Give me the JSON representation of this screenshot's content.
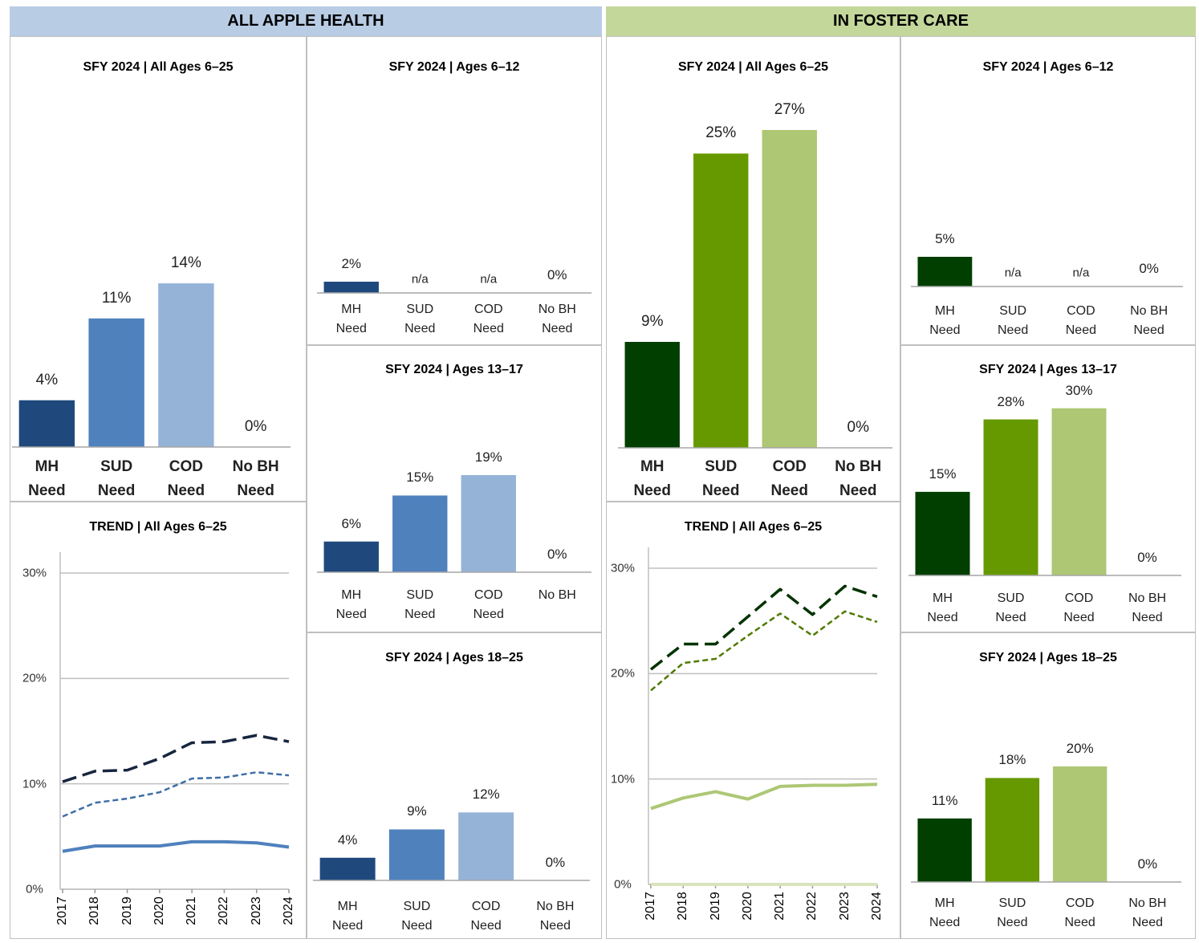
{
  "headers": [
    "ALL APPLE HEALTH",
    "IN FOSTER CARE"
  ],
  "header_colors": [
    "#b8cce4",
    "#c4d79b"
  ],
  "chart_data": [
    {
      "type": "bar",
      "title": "SFY 2024 | All Ages 6–25",
      "categories": [
        "MH Need",
        "SUD Need",
        "COD Need",
        "No BH Need"
      ],
      "values": [
        4,
        11,
        14,
        0
      ],
      "value_labels": [
        "4%",
        "11%",
        "14%",
        "0%"
      ],
      "colors": [
        "#1f497d",
        "#4f81bd",
        "#95b3d7",
        "#dce6f1"
      ],
      "ylim": [
        0,
        30
      ]
    },
    {
      "type": "line",
      "title": "TREND | All Ages 6–25",
      "x": [
        2017,
        2018,
        2019,
        2020,
        2021,
        2022,
        2023,
        2024
      ],
      "xlim": [
        2017,
        2024
      ],
      "xticks": [
        2017,
        2018,
        2019,
        2020,
        2021,
        2022,
        2023,
        2024
      ],
      "ylim": [
        0,
        30
      ],
      "yticks": [
        {
          "value": 0,
          "label": "0%"
        },
        {
          "value": 10,
          "label": "10%"
        },
        {
          "value": 20,
          "label": "20%"
        },
        {
          "value": 30,
          "label": "30%"
        }
      ],
      "grid": true,
      "series": [
        {
          "color": "#17263f",
          "style": "long-dash",
          "values": [
            10.2,
            11.2,
            11.3,
            12.4,
            13.9,
            14.0,
            14.6,
            14.0
          ]
        },
        {
          "color": "#3f6ea5",
          "style": "dash",
          "values": [
            6.9,
            8.2,
            8.6,
            9.2,
            10.5,
            10.6,
            11.1,
            10.8
          ]
        },
        {
          "color": "#4f81bd",
          "style": "solid",
          "values": [
            3.6,
            4.1,
            4.1,
            4.1,
            4.5,
            4.5,
            4.4,
            4.0
          ]
        }
      ]
    },
    {
      "type": "bar",
      "title": "SFY 2024 | Ages 6–12",
      "categories": [
        "MH Need",
        "SUD Need",
        "COD Need",
        "No BH Need"
      ],
      "values": [
        2,
        null,
        null,
        0
      ],
      "value_labels": [
        "2%",
        "n/a",
        "n/a",
        "0%"
      ],
      "colors": [
        "#1f497d",
        "#4f81bd",
        "#95b3d7",
        "#dce6f1"
      ],
      "ylim": [
        0,
        35
      ]
    },
    {
      "type": "bar",
      "title": "SFY 2024 | Ages 13–17",
      "categories": [
        "MH Need",
        "SUD Need",
        "COD Need",
        "No BH"
      ],
      "values": [
        6,
        15,
        19,
        0
      ],
      "value_labels": [
        "6%",
        "15%",
        "19%",
        "0%"
      ],
      "colors": [
        "#1f497d",
        "#4f81bd",
        "#95b3d7",
        "#dce6f1"
      ],
      "ylim": [
        0,
        35
      ]
    },
    {
      "type": "bar",
      "title": "SFY 2024 | Ages 18–25",
      "categories": [
        "MH Need",
        "SUD Need",
        "COD Need",
        "No BH Need"
      ],
      "values": [
        4,
        9,
        12,
        0
      ],
      "value_labels": [
        "4%",
        "9%",
        "12%",
        "0%"
      ],
      "colors": [
        "#1f497d",
        "#4f81bd",
        "#95b3d7",
        "#dce6f1"
      ],
      "ylim": [
        0,
        35
      ]
    },
    {
      "type": "bar",
      "title": "SFY 2024 | All Ages 6–25",
      "categories": [
        "MH Need",
        "SUD Need",
        "COD Need",
        "No BH Need"
      ],
      "values": [
        9,
        25,
        27,
        0
      ],
      "value_labels": [
        "9%",
        "25%",
        "27%",
        "0%"
      ],
      "colors": [
        "#003f00",
        "#669900",
        "#adc774",
        "#ebf1de"
      ],
      "ylim": [
        0,
        30
      ]
    },
    {
      "type": "line",
      "title": "TREND | All Ages 6–25",
      "x": [
        2017,
        2018,
        2019,
        2020,
        2021,
        2022,
        2023,
        2024
      ],
      "xlim": [
        2017,
        2024
      ],
      "xticks": [
        2017,
        2018,
        2019,
        2020,
        2021,
        2022,
        2023,
        2024
      ],
      "ylim": [
        0,
        30
      ],
      "yticks": [
        {
          "value": 0,
          "label": "0%"
        },
        {
          "value": 10,
          "label": "10%"
        },
        {
          "value": 20,
          "label": "20%"
        },
        {
          "value": 30,
          "label": "30%"
        }
      ],
      "grid": true,
      "series": [
        {
          "color": "#003300",
          "style": "long-dash",
          "values": [
            20.4,
            22.8,
            22.8,
            25.4,
            28.0,
            25.6,
            28.3,
            27.3
          ]
        },
        {
          "color": "#4f7a00",
          "style": "dash",
          "values": [
            18.4,
            21.0,
            21.4,
            23.6,
            25.7,
            23.6,
            25.9,
            24.9
          ]
        },
        {
          "color": "#adc774",
          "style": "solid",
          "values": [
            7.2,
            8.2,
            8.8,
            8.1,
            9.3,
            9.4,
            9.4,
            9.5
          ]
        },
        {
          "color": "#d8e4bc",
          "style": "solid",
          "values": [
            0,
            0,
            0,
            0,
            0,
            0,
            0,
            0
          ]
        }
      ]
    },
    {
      "type": "bar",
      "title": "SFY 2024 | Ages 6–12",
      "categories": [
        "MH Need",
        "SUD Need",
        "COD Need",
        "No BH Need"
      ],
      "values": [
        5,
        null,
        null,
        0
      ],
      "value_labels": [
        "5%",
        "n/a",
        "n/a",
        "0%"
      ],
      "colors": [
        "#003f00",
        "#669900",
        "#adc774",
        "#ebf1de"
      ],
      "ylim": [
        0,
        35
      ]
    },
    {
      "type": "bar",
      "title": "SFY 2024 | Ages 13–17",
      "categories": [
        "MH Need",
        "SUD Need",
        "COD Need",
        "No BH Need"
      ],
      "values": [
        15,
        28,
        30,
        0
      ],
      "value_labels": [
        "15%",
        "28%",
        "30%",
        "0%"
      ],
      "colors": [
        "#003f00",
        "#669900",
        "#adc774",
        "#ebf1de"
      ],
      "ylim": [
        0,
        35
      ]
    },
    {
      "type": "bar",
      "title": "SFY 2024 | Ages 18–25",
      "categories": [
        "MH Need",
        "SUD Need",
        "COD Need",
        "No BH Need"
      ],
      "values": [
        11,
        18,
        20,
        0
      ],
      "value_labels": [
        "11%",
        "18%",
        "20%",
        "0%"
      ],
      "colors": [
        "#003f00",
        "#669900",
        "#adc774",
        "#ebf1de"
      ],
      "ylim": [
        0,
        35
      ]
    }
  ]
}
